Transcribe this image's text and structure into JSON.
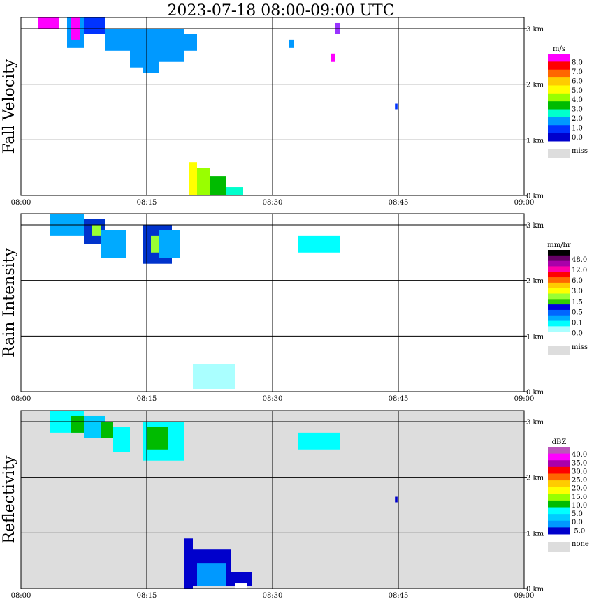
{
  "chart_data": {
    "type": "heatmap",
    "title": "2023-07-18  08:00-09:00 UTC",
    "x_ticks": [
      "08:00",
      "08:15",
      "08:30",
      "08:45",
      "09:00"
    ],
    "x_range": [
      "08:00",
      "09:00"
    ],
    "y_ticks": [
      "0 km",
      "1 km",
      "2 km",
      "3 km"
    ],
    "y_range_km": [
      0,
      3.2
    ],
    "grid": true,
    "panels": [
      {
        "ylabel": "Fall Velocity",
        "legend": {
          "unit": "m/s",
          "colors": [
            "#ff00ff",
            "#ff0000",
            "#ff6600",
            "#ffcc00",
            "#ffff00",
            "#99ff00",
            "#00bb00",
            "#00ffcc",
            "#0099ff",
            "#0033ff",
            "#0000cc"
          ],
          "labels": [
            "8.0",
            "7.0",
            "6.0",
            "5.0",
            "4.0",
            "3.0",
            "2.0",
            "1.0",
            "0.0"
          ],
          "missing_label": "miss",
          "missing_color": "#dddddd"
        },
        "background": "#ffffff",
        "regions": [
          {
            "t0": 2.0,
            "t1": 4.5,
            "h0": 3.0,
            "h1": 3.2,
            "color": "#ff00ff"
          },
          {
            "t0": 5.5,
            "t1": 7.5,
            "h0": 2.65,
            "h1": 3.2,
            "color": "#0099ff"
          },
          {
            "t0": 6.0,
            "t1": 7.0,
            "h0": 2.8,
            "h1": 3.2,
            "color": "#ff00ff"
          },
          {
            "t0": 7.5,
            "t1": 10.0,
            "h0": 2.9,
            "h1": 3.2,
            "color": "#0033ff"
          },
          {
            "t0": 10.0,
            "t1": 13.0,
            "h0": 2.6,
            "h1": 3.0,
            "color": "#0099ff"
          },
          {
            "t0": 13.0,
            "t1": 14.5,
            "h0": 2.3,
            "h1": 3.0,
            "color": "#0099ff"
          },
          {
            "t0": 14.5,
            "t1": 16.5,
            "h0": 2.2,
            "h1": 3.0,
            "color": "#0099ff"
          },
          {
            "t0": 16.5,
            "t1": 19.5,
            "h0": 2.4,
            "h1": 3.0,
            "color": "#0099ff"
          },
          {
            "t0": 19.5,
            "t1": 21.0,
            "h0": 2.6,
            "h1": 2.9,
            "color": "#0099ff"
          },
          {
            "t0": 20.0,
            "t1": 21.0,
            "h0": 0.0,
            "h1": 0.6,
            "color": "#ffff00"
          },
          {
            "t0": 21.0,
            "t1": 22.5,
            "h0": 0.0,
            "h1": 0.5,
            "color": "#99ff00"
          },
          {
            "t0": 22.5,
            "t1": 24.5,
            "h0": 0.0,
            "h1": 0.35,
            "color": "#00bb00"
          },
          {
            "t0": 24.5,
            "t1": 26.5,
            "h0": 0.0,
            "h1": 0.15,
            "color": "#00ffcc"
          },
          {
            "t0": 32.0,
            "t1": 32.5,
            "h0": 2.65,
            "h1": 2.8,
            "color": "#0099ff"
          },
          {
            "t0": 37.0,
            "t1": 37.5,
            "h0": 2.4,
            "h1": 2.55,
            "color": "#ff00ff"
          },
          {
            "t0": 37.5,
            "t1": 38.0,
            "h0": 2.9,
            "h1": 3.1,
            "color": "#9933ff"
          },
          {
            "t0": 44.6,
            "t1": 44.9,
            "h0": 1.55,
            "h1": 1.65,
            "color": "#0033ff"
          }
        ]
      },
      {
        "ylabel": "Rain Intensity",
        "legend": {
          "unit": "mm/hr",
          "colors": [
            "#000000",
            "#660066",
            "#aa00aa",
            "#ff00aa",
            "#ff0000",
            "#ff6600",
            "#ffcc00",
            "#ffff00",
            "#99ff33",
            "#33cc00",
            "#0000dd",
            "#0066ff",
            "#00aaff",
            "#00ffff",
            "#aaffff",
            "#ffffff"
          ],
          "labels": [
            "48.0",
            "12.0",
            "6.0",
            "3.0",
            "1.5",
            "0.5",
            "0.1",
            "0.0"
          ],
          "missing_label": "miss",
          "missing_color": "#dddddd"
        },
        "background": "#ffffff",
        "regions": [
          {
            "t0": 3.5,
            "t1": 7.5,
            "h0": 2.8,
            "h1": 3.2,
            "color": "#00aaff"
          },
          {
            "t0": 7.5,
            "t1": 10.0,
            "h0": 2.65,
            "h1": 3.1,
            "color": "#0033cc"
          },
          {
            "t0": 8.5,
            "t1": 9.5,
            "h0": 2.8,
            "h1": 3.0,
            "color": "#99ff33"
          },
          {
            "t0": 9.5,
            "t1": 12.5,
            "h0": 2.4,
            "h1": 2.9,
            "color": "#00aaff"
          },
          {
            "t0": 14.5,
            "t1": 18.0,
            "h0": 2.3,
            "h1": 3.0,
            "color": "#0033cc"
          },
          {
            "t0": 15.5,
            "t1": 16.5,
            "h0": 2.5,
            "h1": 2.8,
            "color": "#99ff33"
          },
          {
            "t0": 16.5,
            "t1": 19.0,
            "h0": 2.4,
            "h1": 2.9,
            "color": "#00aaff"
          },
          {
            "t0": 20.5,
            "t1": 25.5,
            "h0": 0.05,
            "h1": 0.5,
            "color": "#aaffff"
          },
          {
            "t0": 33.0,
            "t1": 38.0,
            "h0": 2.5,
            "h1": 2.8,
            "color": "#00ffff"
          }
        ]
      },
      {
        "ylabel": "Reflectivity",
        "legend": {
          "unit": "dBZ",
          "colors": [
            "#bb55bb",
            "#ff00ff",
            "#aa00aa",
            "#ff0000",
            "#ff6600",
            "#ffcc00",
            "#ffff00",
            "#99ff00",
            "#00bb00",
            "#00ffff",
            "#00ccff",
            "#0099ff",
            "#0000cc"
          ],
          "labels": [
            "40.0",
            "35.0",
            "30.0",
            "25.0",
            "20.0",
            "15.0",
            "10.0",
            "5.0",
            "0.0",
            "-5.0"
          ],
          "missing_label": "none",
          "missing_color": "#dddddd"
        },
        "background": "#dddddd",
        "regions": [
          {
            "t0": 0.0,
            "t1": 60.0,
            "h0": 3.1,
            "h1": 3.2,
            "color": "#dddddd"
          },
          {
            "t0": 3.5,
            "t1": 7.5,
            "h0": 2.8,
            "h1": 3.2,
            "color": "#00ffff"
          },
          {
            "t0": 6.0,
            "t1": 7.5,
            "h0": 2.8,
            "h1": 3.1,
            "color": "#00bb00"
          },
          {
            "t0": 7.5,
            "t1": 10.0,
            "h0": 2.7,
            "h1": 3.1,
            "color": "#00ccff"
          },
          {
            "t0": 9.5,
            "t1": 11.0,
            "h0": 2.7,
            "h1": 3.0,
            "color": "#00bb00"
          },
          {
            "t0": 11.0,
            "t1": 13.0,
            "h0": 2.45,
            "h1": 2.9,
            "color": "#00ffff"
          },
          {
            "t0": 14.5,
            "t1": 19.5,
            "h0": 2.3,
            "h1": 3.0,
            "color": "#00ffff"
          },
          {
            "t0": 15.0,
            "t1": 17.5,
            "h0": 2.5,
            "h1": 2.9,
            "color": "#00bb00"
          },
          {
            "t0": 19.5,
            "t1": 20.5,
            "h0": 0.0,
            "h1": 0.9,
            "color": "#0000cc"
          },
          {
            "t0": 20.5,
            "t1": 25.0,
            "h0": 0.05,
            "h1": 0.7,
            "color": "#0000cc"
          },
          {
            "t0": 21.0,
            "t1": 24.5,
            "h0": 0.05,
            "h1": 0.45,
            "color": "#0099ff"
          },
          {
            "t0": 25.0,
            "t1": 27.5,
            "h0": 0.05,
            "h1": 0.3,
            "color": "#0000cc"
          },
          {
            "t0": 25.5,
            "t1": 27.0,
            "h0": 0.0,
            "h1": 0.1,
            "color": "#ffffff"
          },
          {
            "t0": 33.0,
            "t1": 38.0,
            "h0": 2.5,
            "h1": 2.8,
            "color": "#00ffff"
          },
          {
            "t0": 44.6,
            "t1": 44.9,
            "h0": 1.55,
            "h1": 1.65,
            "color": "#0000cc"
          }
        ]
      }
    ]
  }
}
